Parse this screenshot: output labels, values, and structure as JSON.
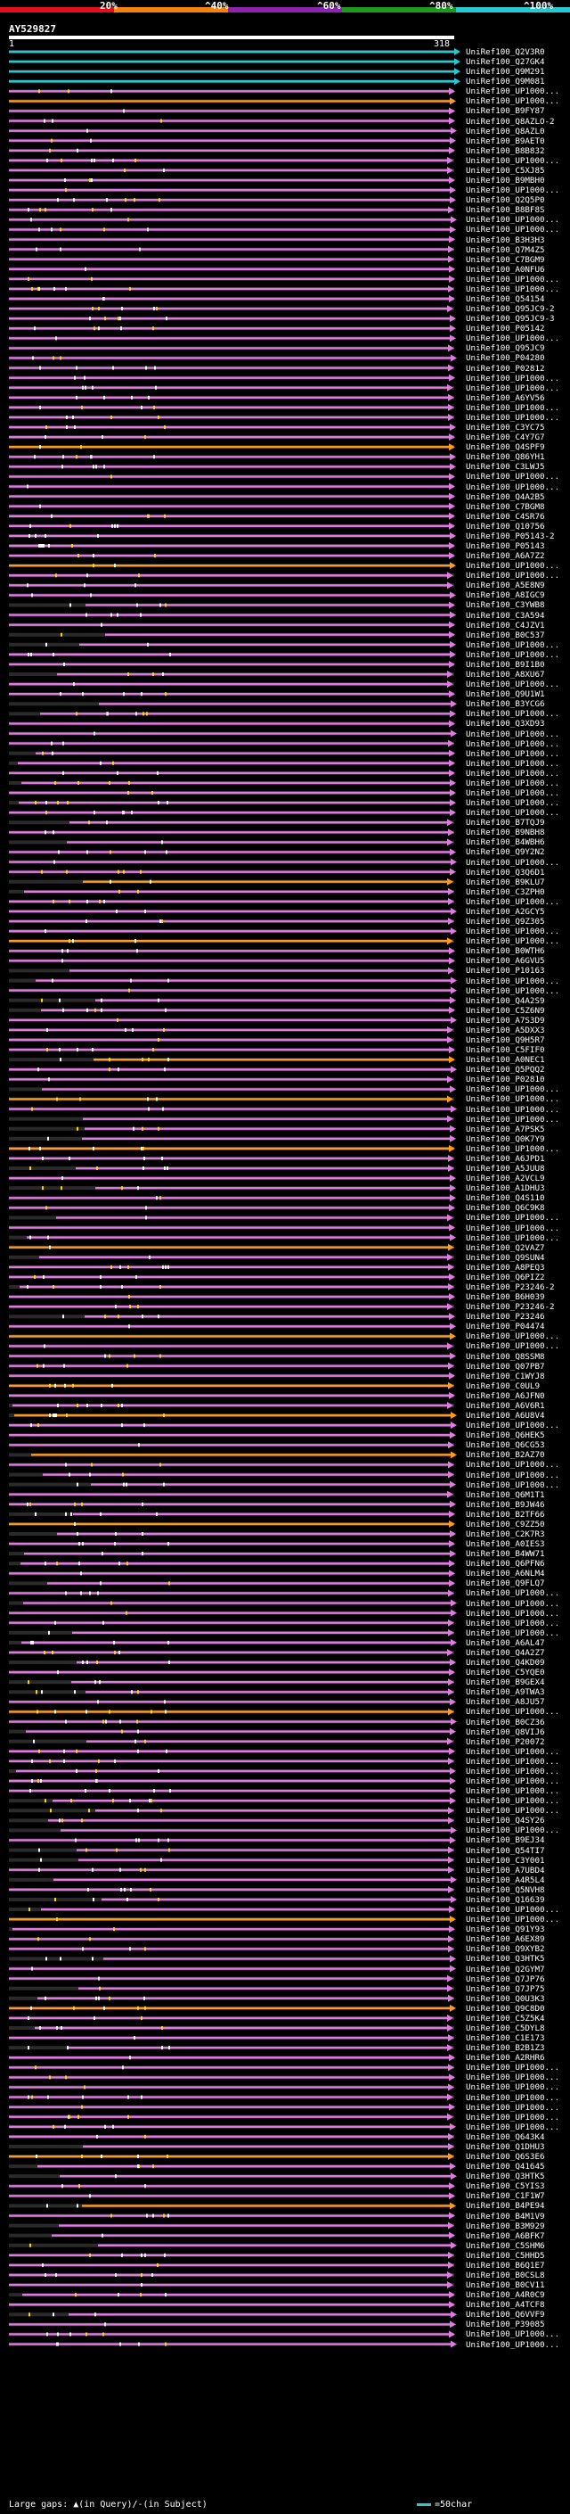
{
  "header": {
    "scale_labels": [
      "20%",
      "^40%",
      "^60%",
      "^80%",
      "^100%"
    ],
    "scale_colors": [
      "#e0101f",
      "#f5820f",
      "#8c24b0",
      "#1d9a1d",
      "#27c8d2"
    ],
    "query_id": "AY529827",
    "range_start": "1",
    "range_end": "318"
  },
  "colors": {
    "identity_top": "#27c8d2",
    "identity_high": "#e07ae0",
    "identity_mid": "#ff9a1a",
    "gap_query": "#ffffff",
    "gap_subject": "#e07ae0",
    "track_bg": "#2a2a2a"
  },
  "hits": [
    {
      "label": "UniRef100_Q2V3R0",
      "c": "t"
    },
    {
      "label": "UniRef100_Q27GK4",
      "c": "t"
    },
    {
      "label": "UniRef100_Q9M291",
      "c": "t"
    },
    {
      "label": "UniRef100_Q9M081",
      "c": "t"
    },
    {
      "label": "UniRef100_UP1000...",
      "c": "p"
    },
    {
      "label": "UniRef100_UP1000...",
      "c": "o"
    },
    {
      "label": "UniRef100_B9FY87",
      "c": "p"
    },
    {
      "label": "UniRef100_Q8AZLO-2",
      "c": "p"
    },
    {
      "label": "UniRef100_Q8AZL0",
      "c": "p"
    },
    {
      "label": "UniRef100_B9AET0",
      "c": "p"
    },
    {
      "label": "UniRef100_B8B832",
      "c": "p"
    },
    {
      "label": "UniRef100_UP1000...",
      "c": "p"
    },
    {
      "label": "UniRef100_C5XJ85",
      "c": "p"
    },
    {
      "label": "UniRef100_B9MBH0",
      "c": "p"
    },
    {
      "label": "UniRef100_UP1000...",
      "c": "p"
    },
    {
      "label": "UniRef100_Q2Q5P0",
      "c": "p"
    },
    {
      "label": "UniRef100_B8BF8S",
      "c": "p"
    },
    {
      "label": "UniRef100_UP1000...",
      "c": "p"
    },
    {
      "label": "UniRef100_UP1000...",
      "c": "p"
    },
    {
      "label": "UniRef100_B3H3H3",
      "c": "p"
    },
    {
      "label": "UniRef100_Q7M4Z5",
      "c": "p"
    },
    {
      "label": "UniRef100_C7BGM9",
      "c": "p"
    },
    {
      "label": "UniRef100_A0NFU6",
      "c": "p"
    },
    {
      "label": "UniRef100_UP1000...",
      "c": "p"
    },
    {
      "label": "UniRef100_UP1000...",
      "c": "p"
    },
    {
      "label": "UniRef100_Q54154",
      "c": "p"
    },
    {
      "label": "UniRef100_Q95JC9-2",
      "c": "p"
    },
    {
      "label": "UniRef100_Q95JC9-3",
      "c": "p"
    },
    {
      "label": "UniRef100_P05142",
      "c": "p"
    },
    {
      "label": "UniRef100_UP1000...",
      "c": "p"
    },
    {
      "label": "UniRef100_Q95JC9",
      "c": "p"
    },
    {
      "label": "UniRef100_P04280",
      "c": "p"
    },
    {
      "label": "UniRef100_P02812",
      "c": "p"
    },
    {
      "label": "UniRef100_UP1000...",
      "c": "p"
    },
    {
      "label": "UniRef100_UP1000...",
      "c": "p"
    },
    {
      "label": "UniRef100_A6YV56",
      "c": "p"
    },
    {
      "label": "UniRef100_UP1000...",
      "c": "p"
    },
    {
      "label": "UniRef100_UP1000...",
      "c": "p"
    },
    {
      "label": "UniRef100_C3YC75",
      "c": "p"
    },
    {
      "label": "UniRef100_C4Y7G7",
      "c": "p"
    },
    {
      "label": "UniRef100_Q4SPF9",
      "c": "o"
    },
    {
      "label": "UniRef100_Q86YH1",
      "c": "p"
    },
    {
      "label": "UniRef100_C3LWJ5",
      "c": "p"
    },
    {
      "label": "UniRef100_UP1000...",
      "c": "p"
    },
    {
      "label": "UniRef100_UP1000...",
      "c": "p"
    },
    {
      "label": "UniRef100_Q4A2B5",
      "c": "p"
    },
    {
      "label": "UniRef100_C7BGM8",
      "c": "p"
    },
    {
      "label": "UniRef100_C4SR76",
      "c": "p"
    },
    {
      "label": "UniRef100_Q10756",
      "c": "p"
    },
    {
      "label": "UniRef100_P05143-2",
      "c": "p"
    },
    {
      "label": "UniRef100_P05143",
      "c": "p"
    },
    {
      "label": "UniRef100_A6A7Z2",
      "c": "p"
    },
    {
      "label": "UniRef100_UP1000...",
      "c": "o"
    },
    {
      "label": "UniRef100_UP1000...",
      "c": "p"
    },
    {
      "label": "UniRef100_A5E8N9",
      "c": "p"
    },
    {
      "label": "UniRef100_A8IGC9",
      "c": "p"
    },
    {
      "label": "UniRef100_C3YWB8",
      "c": "p"
    },
    {
      "label": "UniRef100_C3A594",
      "c": "p"
    },
    {
      "label": "UniRef100_C4JZV1",
      "c": "p"
    },
    {
      "label": "UniRef100_B0C537",
      "c": "p"
    },
    {
      "label": "UniRef100_UP1000...",
      "c": "p"
    },
    {
      "label": "UniRef100_UP1000...",
      "c": "p"
    },
    {
      "label": "UniRef100_B9I1B0",
      "c": "p"
    },
    {
      "label": "UniRef100_A8XU67",
      "c": "p"
    },
    {
      "label": "UniRef100_UP1000...",
      "c": "p"
    },
    {
      "label": "UniRef100_Q9U1W1",
      "c": "p"
    },
    {
      "label": "UniRef100_B3YCG6",
      "c": "p"
    },
    {
      "label": "UniRef100_UP1000...",
      "c": "p"
    },
    {
      "label": "UniRef100_Q3XD93",
      "c": "p"
    },
    {
      "label": "UniRef100_UP1000...",
      "c": "p"
    },
    {
      "label": "UniRef100_UP1000...",
      "c": "p"
    },
    {
      "label": "UniRef100_UP1000...",
      "c": "p"
    },
    {
      "label": "UniRef100_UP1000...",
      "c": "p"
    },
    {
      "label": "UniRef100_UP1000...",
      "c": "p"
    },
    {
      "label": "UniRef100_UP1000...",
      "c": "p"
    },
    {
      "label": "UniRef100_UP1000...",
      "c": "p"
    },
    {
      "label": "UniRef100_UP1000...",
      "c": "p"
    },
    {
      "label": "UniRef100_UP1000...",
      "c": "p"
    },
    {
      "label": "UniRef100_B7TQJ9",
      "c": "p"
    },
    {
      "label": "UniRef100_B9NBH8",
      "c": "p"
    },
    {
      "label": "UniRef100_B4WBH6",
      "c": "p"
    },
    {
      "label": "UniRef100_Q9Y2N2",
      "c": "p"
    },
    {
      "label": "UniRef100_UP1000...",
      "c": "p"
    },
    {
      "label": "UniRef100_Q3Q6D1",
      "c": "p"
    },
    {
      "label": "UniRef100_B9KLU7",
      "c": "o"
    },
    {
      "label": "UniRef100_C3ZPH0",
      "c": "p"
    },
    {
      "label": "UniRef100_UP1000...",
      "c": "p"
    },
    {
      "label": "UniRef100_A2GCY5",
      "c": "p"
    },
    {
      "label": "UniRef100_Q9Z305",
      "c": "p"
    },
    {
      "label": "UniRef100_UP1000...",
      "c": "p"
    },
    {
      "label": "UniRef100_UP1000...",
      "c": "o"
    },
    {
      "label": "UniRef100_B0WTH6",
      "c": "p"
    },
    {
      "label": "UniRef100_A6GVU5",
      "c": "p"
    },
    {
      "label": "UniRef100_P10163",
      "c": "p"
    },
    {
      "label": "UniRef100_UP1000...",
      "c": "p"
    },
    {
      "label": "UniRef100_UP1000...",
      "c": "p"
    },
    {
      "label": "UniRef100_Q4A2S9",
      "c": "p"
    },
    {
      "label": "UniRef100_C5Z6N9",
      "c": "p"
    },
    {
      "label": "UniRef100_A7S3D9",
      "c": "p"
    },
    {
      "label": "UniRef100_A5DXX3",
      "c": "p"
    },
    {
      "label": "UniRef100_Q9H5R7",
      "c": "p"
    },
    {
      "label": "UniRef100_C5FIF0",
      "c": "p"
    },
    {
      "label": "UniRef100_A0NEC1",
      "c": "o"
    },
    {
      "label": "UniRef100_Q5PQQ2",
      "c": "p"
    },
    {
      "label": "UniRef100_P02810",
      "c": "p"
    },
    {
      "label": "UniRef100_UP1000...",
      "c": "p"
    },
    {
      "label": "UniRef100_UP1000...",
      "c": "o"
    },
    {
      "label": "UniRef100_UP1000...",
      "c": "p"
    },
    {
      "label": "UniRef100_UP1000...",
      "c": "p"
    },
    {
      "label": "UniRef100_A7PSK5",
      "c": "p"
    },
    {
      "label": "UniRef100_Q0K7Y9",
      "c": "p"
    },
    {
      "label": "UniRef100_UP1000...",
      "c": "o"
    },
    {
      "label": "UniRef100_A6JPD1",
      "c": "p"
    },
    {
      "label": "UniRef100_A5JUU8",
      "c": "p"
    },
    {
      "label": "UniRef100_A2VCL9",
      "c": "p"
    },
    {
      "label": "UniRef100_A1DHU3",
      "c": "p"
    },
    {
      "label": "UniRef100_Q4S110",
      "c": "p"
    },
    {
      "label": "UniRef100_Q6C9K8",
      "c": "p"
    },
    {
      "label": "UniRef100_UP1000...",
      "c": "p"
    },
    {
      "label": "UniRef100_UP1000...",
      "c": "p"
    },
    {
      "label": "UniRef100_UP1000...",
      "c": "p"
    },
    {
      "label": "UniRef100_Q2VAZ7",
      "c": "o"
    },
    {
      "label": "UniRef100_Q9SUN4",
      "c": "p"
    },
    {
      "label": "UniRef100_A8PEQ3",
      "c": "p"
    },
    {
      "label": "UniRef100_Q6PIZ2",
      "c": "p"
    },
    {
      "label": "UniRef100_P23246-2",
      "c": "p"
    },
    {
      "label": "UniRef100_B6H039",
      "c": "p"
    },
    {
      "label": "UniRef100_P23246-2",
      "c": "p"
    },
    {
      "label": "UniRef100_P23246",
      "c": "p"
    },
    {
      "label": "UniRef100_P04474",
      "c": "p"
    },
    {
      "label": "UniRef100_UP1000...",
      "c": "o"
    },
    {
      "label": "UniRef100_UP1000...",
      "c": "p"
    },
    {
      "label": "UniRef100_Q8SSM8",
      "c": "p"
    },
    {
      "label": "UniRef100_Q07PB7",
      "c": "p"
    },
    {
      "label": "UniRef100_C1WYJ8",
      "c": "p"
    },
    {
      "label": "UniRef100_C0UL9",
      "c": "o"
    },
    {
      "label": "UniRef100_A6JFN0",
      "c": "p"
    },
    {
      "label": "UniRef100_A6V6R1",
      "c": "p"
    },
    {
      "label": "UniRef100_A6U8V4",
      "c": "o"
    },
    {
      "label": "UniRef100_UP1000...",
      "c": "p"
    },
    {
      "label": "UniRef100_Q6HEK5",
      "c": "p"
    },
    {
      "label": "UniRef100_Q6CG53",
      "c": "p"
    },
    {
      "label": "UniRef100_B2AZ70",
      "c": "o"
    },
    {
      "label": "UniRef100_UP1000...",
      "c": "p"
    },
    {
      "label": "UniRef100_UP1000...",
      "c": "p"
    },
    {
      "label": "UniRef100_UP1000...",
      "c": "p"
    },
    {
      "label": "UniRef100_Q6M1T1",
      "c": "p"
    },
    {
      "label": "UniRef100_B9JW46",
      "c": "p"
    },
    {
      "label": "UniRef100_B2TF66",
      "c": "p"
    },
    {
      "label": "UniRef100_C9ZZ50",
      "c": "o"
    },
    {
      "label": "UniRef100_C2K7R3",
      "c": "p"
    },
    {
      "label": "UniRef100_A0IES3",
      "c": "p"
    },
    {
      "label": "UniRef100_B4WW71",
      "c": "p"
    },
    {
      "label": "UniRef100_Q6PFN6",
      "c": "p"
    },
    {
      "label": "UniRef100_A6NLM4",
      "c": "p"
    },
    {
      "label": "UniRef100_Q9FLQ7",
      "c": "p"
    },
    {
      "label": "UniRef100_UP1000...",
      "c": "p"
    },
    {
      "label": "UniRef100_UP1000...",
      "c": "p"
    },
    {
      "label": "UniRef100_UP1000...",
      "c": "p"
    },
    {
      "label": "UniRef100_UP1000...",
      "c": "p"
    },
    {
      "label": "UniRef100_UP1000...",
      "c": "p"
    },
    {
      "label": "UniRef100_A6AL47",
      "c": "p"
    },
    {
      "label": "UniRef100_Q4A2Z7",
      "c": "p"
    },
    {
      "label": "UniRef100_Q4KD09",
      "c": "p"
    },
    {
      "label": "UniRef100_C5YQE0",
      "c": "p"
    },
    {
      "label": "UniRef100_B9GEX4",
      "c": "p"
    },
    {
      "label": "UniRef100_A9TWA3",
      "c": "p"
    },
    {
      "label": "UniRef100_A8JU57",
      "c": "p"
    },
    {
      "label": "UniRef100_UP1000...",
      "c": "o"
    },
    {
      "label": "UniRef100_B0CZ36",
      "c": "p"
    },
    {
      "label": "UniRef100_Q8VIJ6",
      "c": "p"
    },
    {
      "label": "UniRef100_P20072",
      "c": "p"
    },
    {
      "label": "UniRef100_UP1000...",
      "c": "p"
    },
    {
      "label": "UniRef100_UP1000...",
      "c": "p"
    },
    {
      "label": "UniRef100_UP1000...",
      "c": "p"
    },
    {
      "label": "UniRef100_UP1000...",
      "c": "p"
    },
    {
      "label": "UniRef100_UP1000...",
      "c": "p"
    },
    {
      "label": "UniRef100_UP1000...",
      "c": "p"
    },
    {
      "label": "UniRef100_UP1000...",
      "c": "p"
    },
    {
      "label": "UniRef100_Q4SY26",
      "c": "p"
    },
    {
      "label": "UniRef100_UP1000...",
      "c": "p"
    },
    {
      "label": "UniRef100_B9EJ34",
      "c": "p"
    },
    {
      "label": "UniRef100_Q54TI7",
      "c": "p"
    },
    {
      "label": "UniRef100_C3Y001",
      "c": "p"
    },
    {
      "label": "UniRef100_A7UBD4",
      "c": "p"
    },
    {
      "label": "UniRef100_A4R5L4",
      "c": "p"
    },
    {
      "label": "UniRef100_Q5NVH8",
      "c": "p"
    },
    {
      "label": "UniRef100_Q16639",
      "c": "p"
    },
    {
      "label": "UniRef100_UP1000...",
      "c": "p"
    },
    {
      "label": "UniRef100_UP1000...",
      "c": "o"
    },
    {
      "label": "UniRef100_Q91Y93",
      "c": "p"
    },
    {
      "label": "UniRef100_A6EX89",
      "c": "p"
    },
    {
      "label": "UniRef100_Q9XYB2",
      "c": "p"
    },
    {
      "label": "UniRef100_Q3HTK5",
      "c": "p"
    },
    {
      "label": "UniRef100_Q2GYM7",
      "c": "p"
    },
    {
      "label": "UniRef100_Q7JP76",
      "c": "p"
    },
    {
      "label": "UniRef100_Q7JP75",
      "c": "p"
    },
    {
      "label": "UniRef100_Q0U3K3",
      "c": "p"
    },
    {
      "label": "UniRef100_Q9C8D0",
      "c": "o"
    },
    {
      "label": "UniRef100_C5Z5K4",
      "c": "p"
    },
    {
      "label": "UniRef100_C5DYL8",
      "c": "p"
    },
    {
      "label": "UniRef100_C1E173",
      "c": "p"
    },
    {
      "label": "UniRef100_B2B1Z3",
      "c": "p"
    },
    {
      "label": "UniRef100_A2RHR6",
      "c": "p"
    },
    {
      "label": "UniRef100_UP1000...",
      "c": "p"
    },
    {
      "label": "UniRef100_UP1000...",
      "c": "p"
    },
    {
      "label": "UniRef100_UP1000...",
      "c": "p"
    },
    {
      "label": "UniRef100_UP1000...",
      "c": "p"
    },
    {
      "label": "UniRef100_UP1000...",
      "c": "p"
    },
    {
      "label": "UniRef100_UP1000...",
      "c": "p"
    },
    {
      "label": "UniRef100_UP1000...",
      "c": "p"
    },
    {
      "label": "UniRef100_Q643K4",
      "c": "p"
    },
    {
      "label": "UniRef100_Q1DHU3",
      "c": "p"
    },
    {
      "label": "UniRef100_Q6S3E6",
      "c": "o"
    },
    {
      "label": "UniRef100_Q41645",
      "c": "p"
    },
    {
      "label": "UniRef100_Q3HTK5",
      "c": "p"
    },
    {
      "label": "UniRef100_C5YIS3",
      "c": "p"
    },
    {
      "label": "UniRef100_C1F1W7",
      "c": "p"
    },
    {
      "label": "UniRef100_B4PE94",
      "c": "o"
    },
    {
      "label": "UniRef100_B4M1V9",
      "c": "p"
    },
    {
      "label": "UniRef100_B3M929",
      "c": "p"
    },
    {
      "label": "UniRef100_A6BFK7",
      "c": "p"
    },
    {
      "label": "UniRef100_C5SHM6",
      "c": "p"
    },
    {
      "label": "UniRef100_C5HHD5",
      "c": "p"
    },
    {
      "label": "UniRef100_B6Q1E7",
      "c": "p"
    },
    {
      "label": "UniRef100_B0CSL8",
      "c": "p"
    },
    {
      "label": "UniRef100_B0CV11",
      "c": "p"
    },
    {
      "label": "UniRef100_A4R0C9",
      "c": "p"
    },
    {
      "label": "UniRef100_A4TCF8",
      "c": "p"
    },
    {
      "label": "UniRef100_Q6VVF9",
      "c": "p"
    },
    {
      "label": "UniRef100_P39085",
      "c": "p"
    },
    {
      "label": "UniRef100_UP1000...",
      "c": "p"
    },
    {
      "label": "UniRef100_UP1000...",
      "c": "p"
    }
  ],
  "footer": {
    "text": "Large gaps: ▲(in Query)/-(in Subject)",
    "legend": "=50char"
  }
}
